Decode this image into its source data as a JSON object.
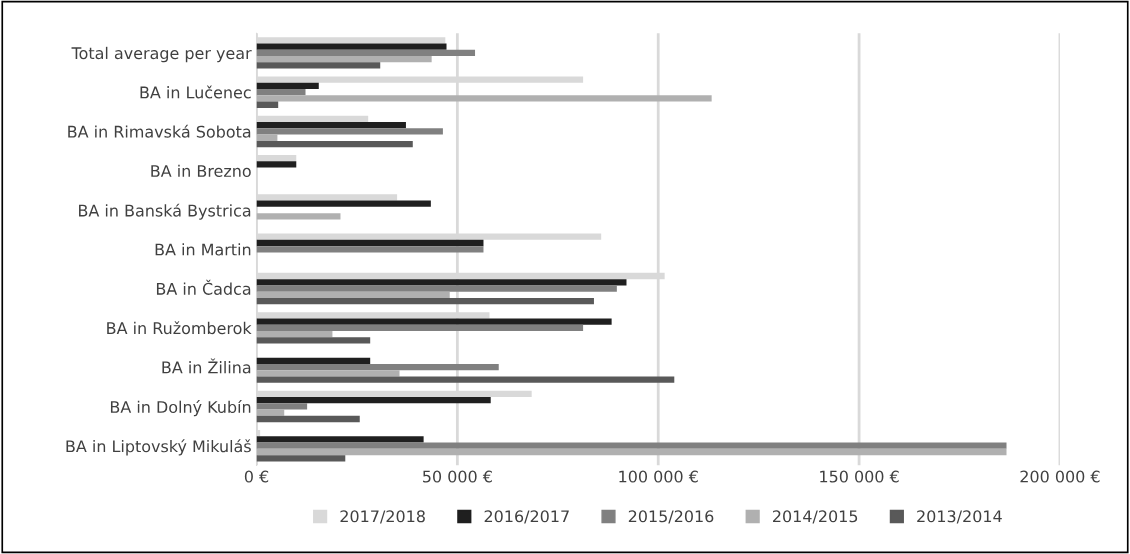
{
  "chart_data": {
    "type": "bar",
    "orientation": "horizontal",
    "categories": [
      "Total average per year",
      "BA in Lučenec",
      "BA in Rimavská Sobota",
      "BA in Brezno",
      "BA in Banská Bystrica",
      "BA in Martin",
      "BA in Čadca",
      "BA in Ružomberok",
      "BA in Žilina",
      "BA in Dolný Kubín",
      "BA in Liptovský Mikuláš"
    ],
    "series": [
      {
        "name": "2017/2018",
        "color": "#d9d9d9",
        "values": [
          47000,
          81300,
          27800,
          9900,
          35000,
          85800,
          101600,
          58000,
          null,
          68500,
          900
        ]
      },
      {
        "name": "2016/2017",
        "color": "#1f1f1f",
        "values": [
          47300,
          15500,
          37200,
          9900,
          43400,
          56500,
          92100,
          88400,
          28300,
          58300,
          41600
        ]
      },
      {
        "name": "2015/2016",
        "color": "#808080",
        "values": [
          54400,
          12200,
          46400,
          null,
          null,
          56500,
          89700,
          81300,
          60300,
          12600,
          186700
        ]
      },
      {
        "name": "2014/2015",
        "color": "#b0b0b0",
        "values": [
          43600,
          113300,
          5200,
          null,
          20900,
          null,
          48100,
          18900,
          35600,
          6900,
          186700
        ]
      },
      {
        "name": "2013/2014",
        "color": "#595959",
        "values": [
          30800,
          5400,
          38900,
          null,
          null,
          null,
          84000,
          28300,
          104000,
          25700,
          22100
        ]
      }
    ],
    "xlim": [
      0,
      200000
    ],
    "xticks": [
      {
        "value": 0,
        "label": "0 €"
      },
      {
        "value": 50000,
        "label": "50 000 €"
      },
      {
        "value": 100000,
        "label": "100 000 €"
      },
      {
        "value": 150000,
        "label": "150 000 €"
      },
      {
        "value": 200000,
        "label": "200 000 €"
      }
    ],
    "grid": "x",
    "legend": "bottom"
  }
}
